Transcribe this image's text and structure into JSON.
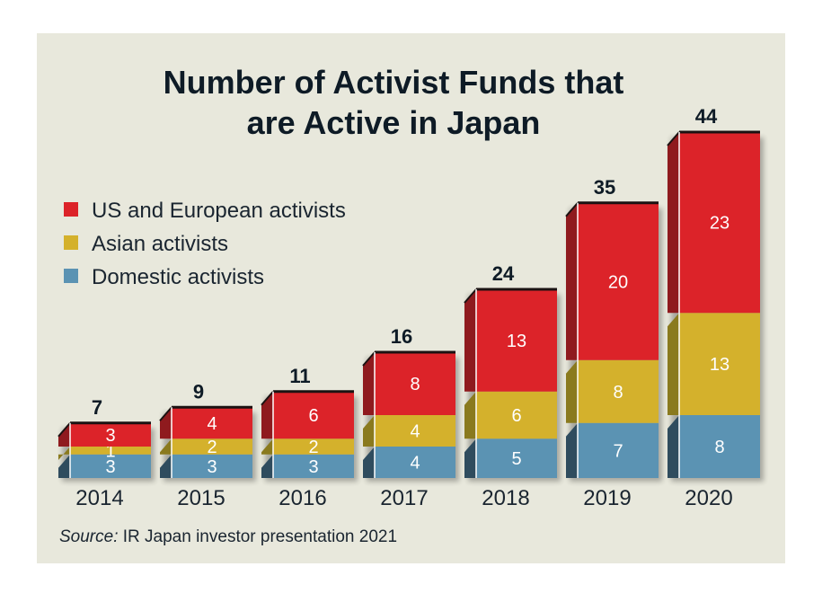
{
  "chart_data": {
    "type": "bar",
    "stacked": true,
    "title": [
      "Number of Activist Funds that",
      "are Active in Japan"
    ],
    "categories": [
      "2014",
      "2015",
      "2016",
      "2017",
      "2018",
      "2019",
      "2020"
    ],
    "series": [
      {
        "name": "Domestic activists",
        "values": [
          3,
          3,
          3,
          4,
          5,
          7,
          8
        ],
        "color": "#5b93b3",
        "side": "#2f4c5e"
      },
      {
        "name": "Asian activists",
        "values": [
          1,
          2,
          2,
          4,
          6,
          8,
          13
        ],
        "color": "#d4b12c",
        "side": "#8a7a1e"
      },
      {
        "name": "US and European activists",
        "values": [
          3,
          4,
          6,
          8,
          13,
          20,
          23
        ],
        "color": "#dc2329",
        "side": "#8f1a1e"
      }
    ],
    "totals": [
      7,
      9,
      11,
      16,
      24,
      35,
      44
    ],
    "legend": [
      "US and European activists",
      "Asian activists",
      "Domestic activists"
    ],
    "legend_position": "top-left",
    "ylim": [
      0,
      44
    ],
    "source_label": "Source:",
    "source_text": " IR Japan investor presentation 2021"
  }
}
